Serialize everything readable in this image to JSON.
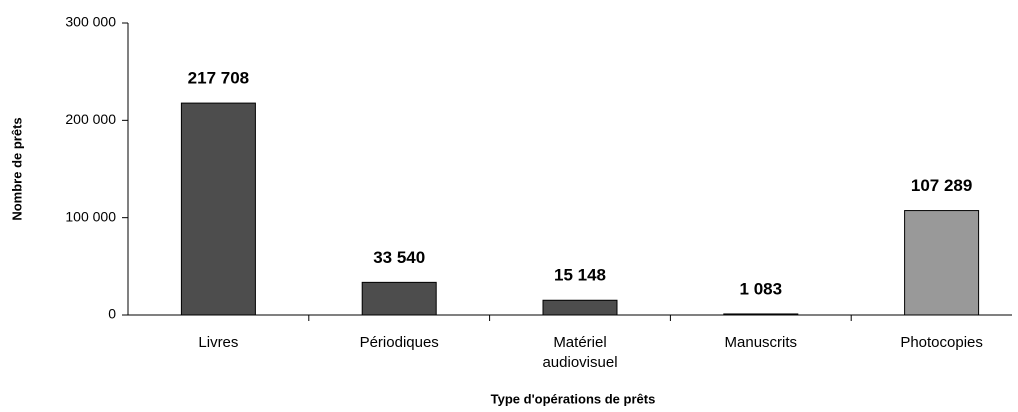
{
  "chart_data": {
    "type": "bar",
    "categories": [
      "Livres",
      "Périodiques",
      "Matériel audiovisuel",
      "Manuscrits",
      "Photocopies"
    ],
    "values": [
      217708,
      33540,
      15148,
      1083,
      107289
    ],
    "value_labels": [
      "217 708",
      "33 540",
      "15 148",
      "1 083",
      "107 289"
    ],
    "colors": [
      "#4d4d4d",
      "#4d4d4d",
      "#4d4d4d",
      "#4d4d4d",
      "#999999"
    ],
    "ylabel": "Nombre de prêts",
    "xlabel": "Type d'opérations de prêts",
    "ylim": [
      0,
      300000
    ],
    "yticks": [
      0,
      {
        "value": 100000,
        "label": "100 000"
      },
      {
        "value": 200000,
        "label": "200 000"
      },
      {
        "value": 300000,
        "label": "300 000"
      }
    ]
  }
}
